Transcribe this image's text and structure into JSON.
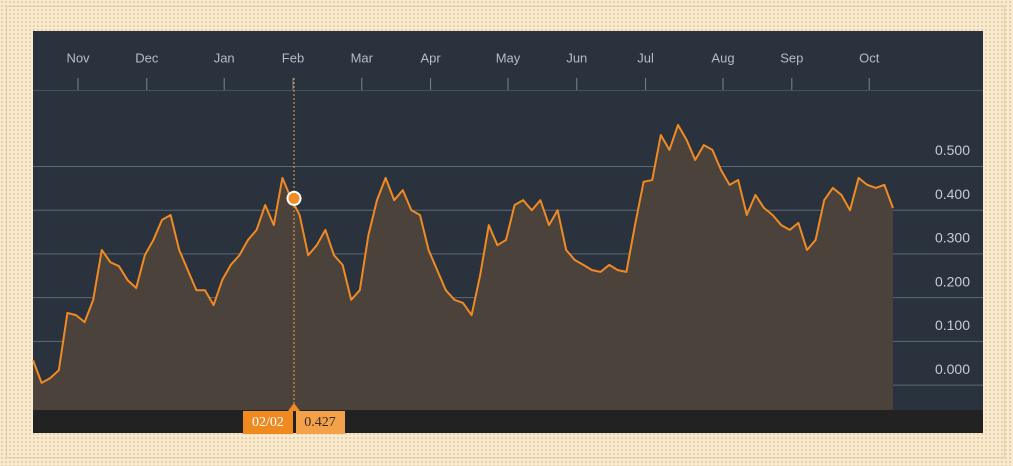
{
  "chart_data": {
    "type": "area",
    "categories": [
      null,
      null,
      null,
      null,
      null,
      "Nov",
      null,
      null,
      null,
      null,
      null,
      null,
      null,
      "Dec",
      null,
      null,
      null,
      null,
      null,
      null,
      null,
      null,
      "Jan",
      null,
      null,
      null,
      null,
      null,
      null,
      null,
      "Feb",
      null,
      null,
      null,
      null,
      null,
      null,
      null,
      "Mar",
      null,
      null,
      null,
      null,
      null,
      null,
      null,
      "Apr",
      null,
      null,
      null,
      null,
      null,
      null,
      null,
      null,
      "May",
      null,
      null,
      null,
      null,
      null,
      null,
      null,
      "Jun",
      null,
      null,
      null,
      null,
      null,
      null,
      null,
      "Jul",
      null,
      null,
      null,
      null,
      null,
      null,
      null,
      null,
      "Aug",
      null,
      null,
      null,
      null,
      null,
      null,
      null,
      "Sep",
      null,
      null,
      null,
      null,
      null,
      null,
      null,
      null,
      "Oct",
      null,
      null,
      null
    ],
    "values": [
      0.057,
      0.005,
      0.016,
      0.034,
      0.165,
      0.16,
      0.144,
      0.195,
      0.309,
      0.281,
      0.272,
      0.24,
      0.222,
      0.297,
      0.332,
      0.378,
      0.389,
      0.309,
      0.263,
      0.217,
      0.217,
      0.183,
      0.24,
      0.275,
      0.297,
      0.332,
      0.355,
      0.412,
      0.366,
      0.474,
      0.427,
      0.389,
      0.297,
      0.32,
      0.355,
      0.297,
      0.275,
      0.195,
      0.217,
      0.343,
      0.423,
      0.474,
      0.423,
      0.446,
      0.4,
      0.389,
      0.309,
      0.263,
      0.217,
      0.195,
      0.188,
      0.16,
      0.252,
      0.366,
      0.32,
      0.332,
      0.412,
      0.423,
      0.4,
      0.423,
      0.366,
      0.4,
      0.309,
      0.286,
      0.275,
      0.263,
      0.259,
      0.275,
      0.263,
      0.259,
      0.366,
      0.465,
      0.469,
      0.572,
      0.538,
      0.595,
      0.561,
      0.515,
      0.549,
      0.538,
      0.492,
      0.458,
      0.469,
      0.389,
      0.435,
      0.405,
      0.389,
      0.366,
      0.355,
      0.371,
      0.309,
      0.332,
      0.423,
      0.451,
      0.435,
      0.4,
      0.474,
      0.458,
      0.451,
      0.458,
      0.405
    ],
    "color": "#f08a24",
    "ylim": [
      -0.057,
      0.675
    ],
    "yticks": [
      {
        "value": 0,
        "label": "0.000"
      },
      {
        "value": 0.1,
        "label": "0.100"
      },
      {
        "value": 0.2,
        "label": "0.200"
      },
      {
        "value": 0.3,
        "label": "0.300"
      },
      {
        "value": 0.4,
        "label": "0.400"
      },
      {
        "value": 0.5,
        "label": "0.500"
      }
    ],
    "grid": true,
    "tooltip": {
      "category": "02/02",
      "value": 0.427
    }
  }
}
